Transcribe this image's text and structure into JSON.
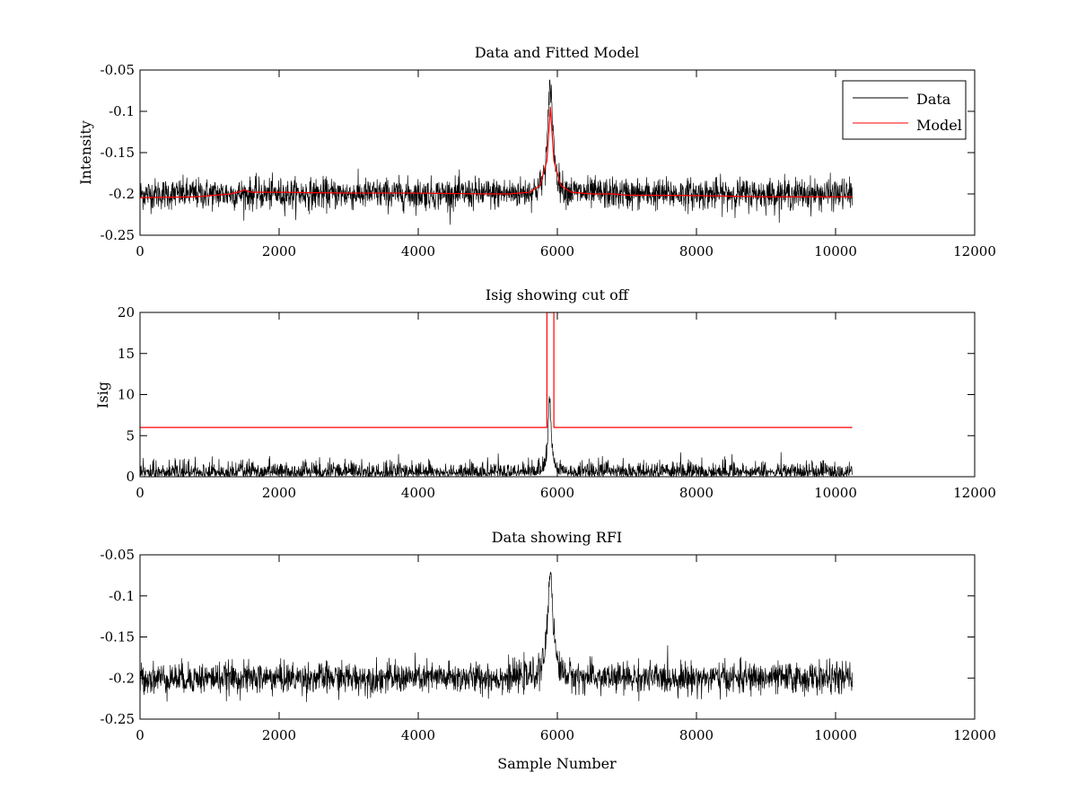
{
  "chart_data": [
    {
      "type": "line",
      "title": "Data and Fitted Model",
      "xlabel": "",
      "ylabel": "Intensity",
      "xlim": [
        0,
        12000
      ],
      "ylim": [
        -0.25,
        -0.05
      ],
      "y_reversed": true,
      "xticks": [
        0,
        2000,
        4000,
        6000,
        8000,
        10000,
        12000
      ],
      "xtick_labels": [
        "0",
        "2000",
        "4000",
        "6000",
        "8000",
        "10000",
        "12000"
      ],
      "yticks": [
        -0.05,
        -0.1,
        -0.15,
        -0.2,
        -0.25
      ],
      "ytick_labels": [
        "-0.05",
        "-0.1",
        "-0.15",
        "-0.2",
        "-0.25"
      ],
      "grid": false,
      "legend": "top-right",
      "series": [
        {
          "name": "Data",
          "color": "#000000",
          "style": "noise",
          "x_range": [
            0,
            10240
          ],
          "baseline": -0.2,
          "noise_amplitude": 0.022,
          "peak": {
            "x": 5900,
            "value": -0.068,
            "width": 45
          }
        },
        {
          "name": "Model",
          "color": "#ff0000",
          "style": "line",
          "x": [
            0,
            800,
            1300,
            1450,
            1500,
            1600,
            2000,
            3000,
            4000,
            5000,
            5300,
            5600,
            5750,
            5850,
            5900,
            5950,
            6050,
            6200,
            6500,
            6800,
            7000,
            8000,
            9000,
            10000,
            10240
          ],
          "y": [
            -0.2045,
            -0.2035,
            -0.2,
            -0.197,
            -0.195,
            -0.198,
            -0.198,
            -0.199,
            -0.199,
            -0.2,
            -0.2,
            -0.198,
            -0.19,
            -0.16,
            -0.095,
            -0.16,
            -0.19,
            -0.198,
            -0.2,
            -0.2,
            -0.2015,
            -0.202,
            -0.2035,
            -0.2035,
            -0.2035
          ]
        }
      ]
    },
    {
      "type": "line",
      "title": "Isig showing cut off",
      "xlabel": "",
      "ylabel": "Isig",
      "xlim": [
        0,
        12000
      ],
      "ylim": [
        0,
        20
      ],
      "xticks": [
        0,
        2000,
        4000,
        6000,
        8000,
        10000,
        12000
      ],
      "xtick_labels": [
        "0",
        "2000",
        "4000",
        "6000",
        "8000",
        "10000",
        "12000"
      ],
      "yticks": [
        0,
        5,
        10,
        15,
        20
      ],
      "ytick_labels": [
        "0",
        "5",
        "10",
        "15",
        "20"
      ],
      "grid": false,
      "series": [
        {
          "color": "#000000",
          "style": "abs-noise",
          "x_range": [
            0,
            10240
          ],
          "noise_amplitude": 1.5,
          "peak": {
            "x": 5890,
            "value": 9,
            "width": 25
          }
        },
        {
          "color": "#ff0000",
          "style": "line",
          "x": [
            0,
            5850,
            5850,
            5950,
            5950,
            10240
          ],
          "y": [
            6,
            6,
            20,
            20,
            6,
            6
          ]
        }
      ]
    },
    {
      "type": "line",
      "title": "Data showing RFI",
      "xlabel": "Sample Number",
      "ylabel": "",
      "xlim": [
        0,
        12000
      ],
      "ylim": [
        -0.25,
        -0.05
      ],
      "y_reversed": true,
      "xticks": [
        0,
        2000,
        4000,
        6000,
        8000,
        10000,
        12000
      ],
      "xtick_labels": [
        "0",
        "2000",
        "4000",
        "6000",
        "8000",
        "10000",
        "12000"
      ],
      "yticks": [
        -0.05,
        -0.1,
        -0.15,
        -0.2,
        -0.25
      ],
      "ytick_labels": [
        "-0.05",
        "-0.1",
        "-0.15",
        "-0.2",
        "-0.25"
      ],
      "grid": false,
      "series": [
        {
          "color": "#000000",
          "style": "noise",
          "x_range": [
            0,
            10240
          ],
          "baseline": -0.2,
          "noise_amplitude": 0.022,
          "peak": {
            "x": 5900,
            "value": -0.068,
            "width": 45
          }
        }
      ]
    }
  ]
}
